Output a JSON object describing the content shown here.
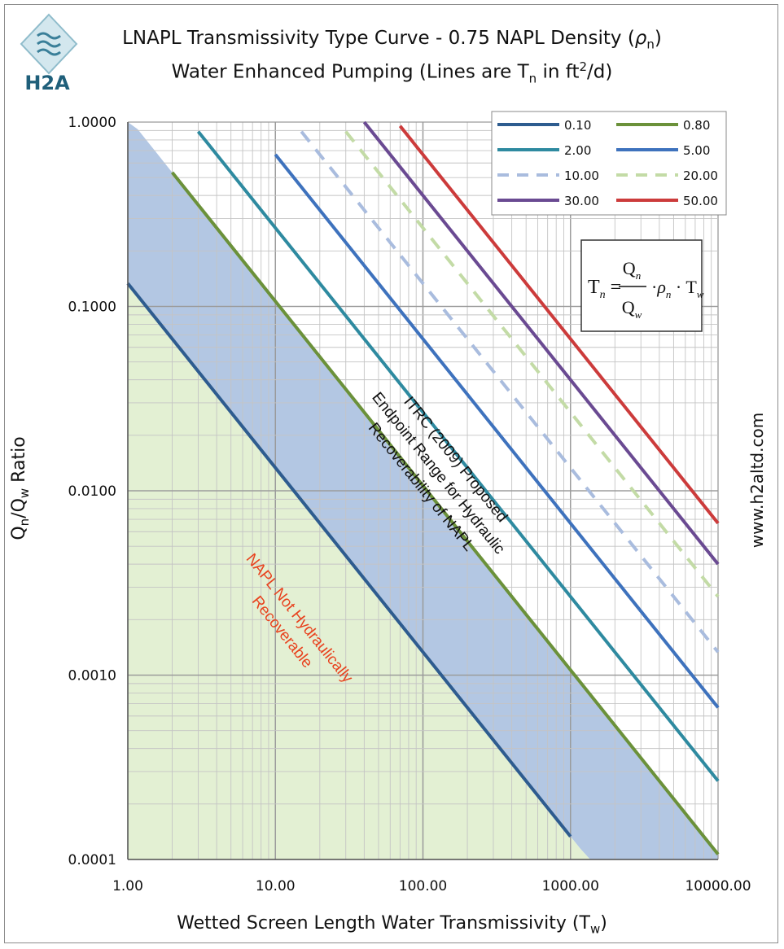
{
  "header": {
    "title_main": "LNAPL Transmissivity Type Curve - 0.75 NAPL Density (",
    "title_rho": "ρ",
    "title_rho_sub": "n",
    "title_end": ")",
    "subtitle_main": "Water Enhanced Pumping (Lines are T",
    "subtitle_sub": "n",
    "subtitle_mid": " in ft",
    "subtitle_sup": "2",
    "subtitle_end": "/d)"
  },
  "logo": {
    "text": "H2A",
    "icon": "wave-diamond-logo"
  },
  "website": "www.h2altd.com",
  "formula": {
    "lhs": "Tn",
    "numerator": "Qn",
    "denominator": "Qw",
    "rho": "ρn",
    "tw": "Tw"
  },
  "colors": {
    "blue_region": "#b3c7e3",
    "green_region": "#e3f0d3",
    "annotation_red": "#e8421e",
    "annotation_dark": "#111111"
  },
  "chart_data": {
    "type": "line",
    "xscale": "log",
    "yscale": "log",
    "xlim": [
      1,
      10000
    ],
    "ylim": [
      0.0001,
      1
    ],
    "xlabel": "Wetted Screen Length Water Transmissivity (Tw)",
    "xlabel_main": "Wetted Screen Length Water Transmissivity (T",
    "xlabel_sub": "w",
    "xlabel_end": ")",
    "ylabel": "Qn/Qw Ratio",
    "ylabel_q1": "Q",
    "ylabel_s1": "n",
    "ylabel_slash": "/Q",
    "ylabel_s2": "w",
    "ylabel_end": " Ratio",
    "xticks": [
      1,
      10,
      100,
      1000,
      10000
    ],
    "xtick_labels": [
      "1.00",
      "10.00",
      "100.00",
      "1000.00",
      "10000.00"
    ],
    "yticks": [
      0.0001,
      0.001,
      0.01,
      0.1,
      1
    ],
    "ytick_labels": [
      "0.0001",
      "0.0010",
      "0.0100",
      "0.1000",
      "1.0000"
    ],
    "grid": true,
    "legend_position": "top-right",
    "rho": 0.75,
    "series": [
      {
        "name": "0.10",
        "tn": 0.1,
        "color": "#2e5c8f",
        "dash": false,
        "x_range": [
          1,
          1000
        ]
      },
      {
        "name": "0.80",
        "tn": 0.8,
        "color": "#6b913a",
        "dash": false,
        "x_range": [
          2,
          10000
        ]
      },
      {
        "name": "2.00",
        "tn": 2,
        "color": "#2e8aa0",
        "dash": false,
        "x_range": [
          3,
          10000
        ]
      },
      {
        "name": "5.00",
        "tn": 5,
        "color": "#3e72bd",
        "dash": false,
        "x_range": [
          10,
          10000
        ]
      },
      {
        "name": "10.00",
        "tn": 10,
        "color": "#a9bcde",
        "dash": true,
        "x_range": [
          15,
          10000
        ]
      },
      {
        "name": "20.00",
        "tn": 20,
        "color": "#c3dba6",
        "dash": true,
        "x_range": [
          30,
          10000
        ]
      },
      {
        "name": "30.00",
        "tn": 30,
        "color": "#6a4a92",
        "dash": false,
        "x_range": [
          40,
          10000
        ]
      },
      {
        "name": "50.00",
        "tn": 50,
        "color": "#cc3b3b",
        "dash": false,
        "x_range": [
          70,
          10000
        ]
      }
    ],
    "annotations": [
      {
        "text_lines": [
          "ITRC (2009) Proposed",
          "Endpoint Range for Hydraulic",
          "Recoverability of NAPL"
        ],
        "color": "#111111",
        "x": 120,
        "y": 0.012
      },
      {
        "text_lines": [
          "NAPL Not Hydraulically",
          "Recoverable"
        ],
        "color": "#e8421e",
        "x": 12,
        "y": 0.0018
      }
    ]
  }
}
